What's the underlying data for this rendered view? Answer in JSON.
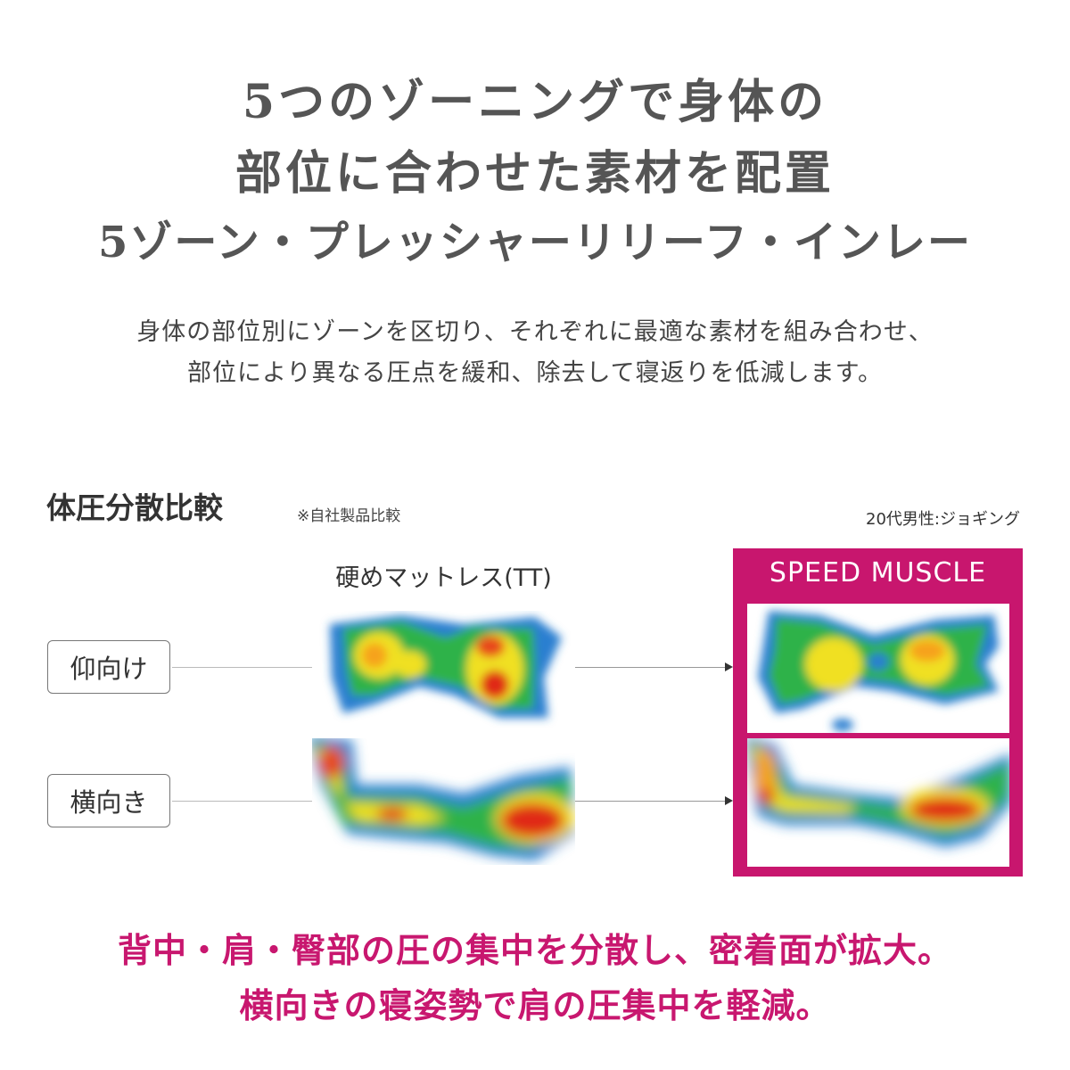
{
  "headline": {
    "line1": "5つのゾーニングで身体の",
    "line2": "部位に合わせた素材を配置",
    "line3": "5ゾーン・プレッシャーリリーフ・インレー"
  },
  "lead": {
    "line1": "身体の部位別にゾーンを区切り、それぞれに最適な素材を組み合わせ、",
    "line2": "部位により異なる圧点を緩和、除去して寝返りを低減します。"
  },
  "comparison": {
    "title": "体圧分散比較",
    "note": "※自社製品比較",
    "subject": "20代男性:ジョギング",
    "left_heading": "硬めマットレス(TT)",
    "right_heading": "SPEED MUSCLE",
    "rows": [
      {
        "label": "仰向け"
      },
      {
        "label": "横向き"
      }
    ]
  },
  "conclusion": {
    "line1": "背中・肩・臀部の圧の集中を分散し、密着面が拡大。",
    "line2": "横向きの寝姿勢で肩の圧集中を軽減。"
  },
  "colors": {
    "accent": "#c8166e",
    "text": "#555555"
  }
}
